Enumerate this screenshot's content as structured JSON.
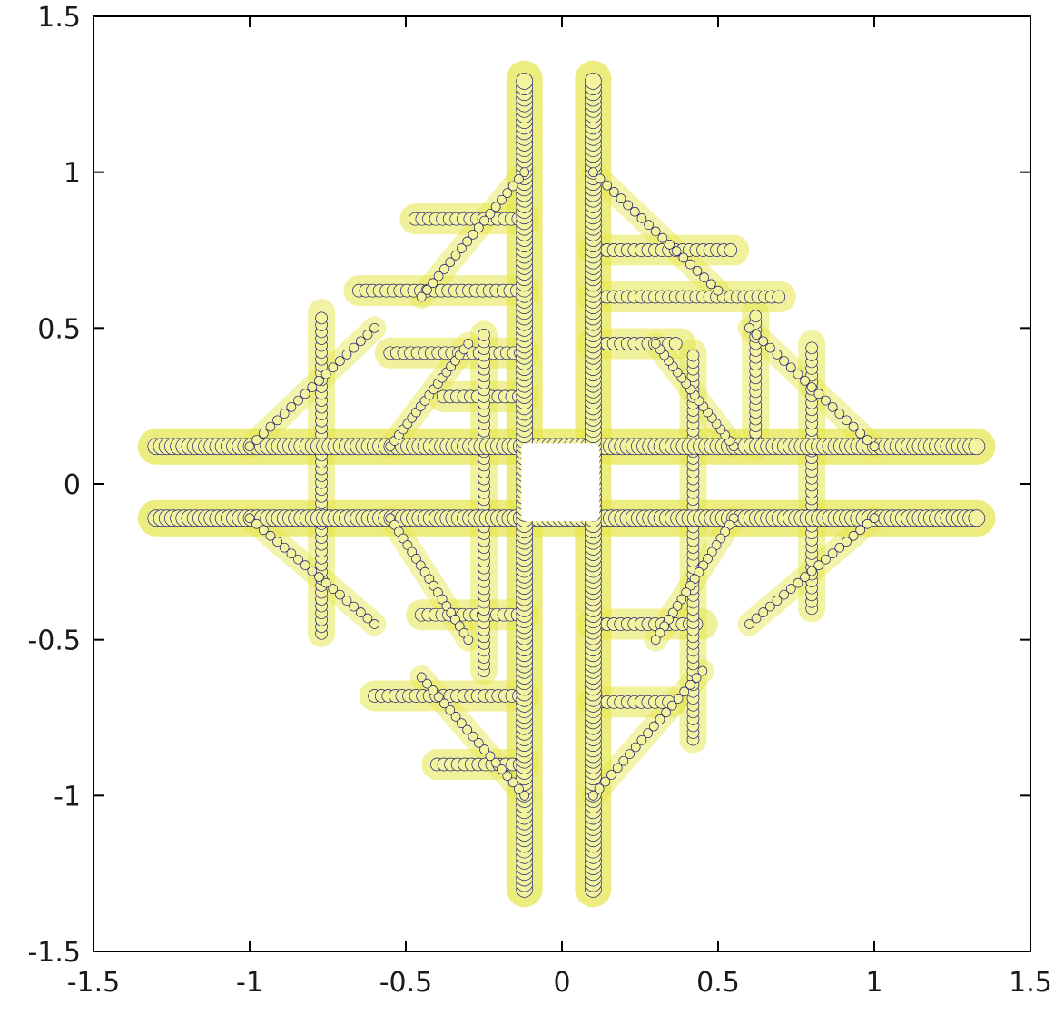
{
  "chart_data": {
    "type": "scatter",
    "title": "",
    "xlabel": "",
    "ylabel": "",
    "xlim": [
      -1.5,
      1.5
    ],
    "ylim": [
      -1.5,
      1.5
    ],
    "grid": false,
    "legend": "none",
    "x_ticks": [
      "-1.5",
      "-1",
      "-0.5",
      "0",
      "0.5",
      "1",
      "1.5"
    ],
    "y_ticks": [
      "1.5",
      "1",
      "0.5",
      "0",
      "-0.5",
      "-1",
      "-1.5"
    ],
    "colors": {
      "fill": "#e6e64a",
      "marker_edge": "#1c1c6e",
      "marker_face": "#f4f4a0",
      "frame": "#000000"
    },
    "structure": {
      "description_hidden": true,
      "vertical_bars": [
        {
          "x": -0.12,
          "y_range": [
            -1.3,
            1.3
          ]
        },
        {
          "x": 0.1,
          "y_range": [
            -1.3,
            1.3
          ]
        }
      ],
      "horizontal_bars": [
        {
          "y": 0.12,
          "x_range": [
            -1.3,
            1.33
          ]
        },
        {
          "y": -0.11,
          "x_range": [
            -1.3,
            1.33
          ]
        }
      ],
      "side_branches": [
        {
          "y": 0.85,
          "x_range": [
            -0.47,
            -0.12
          ]
        },
        {
          "y": 0.62,
          "x_range": [
            -0.65,
            -0.12
          ]
        },
        {
          "y": 0.42,
          "x_range": [
            -0.55,
            -0.12
          ]
        },
        {
          "y": 0.28,
          "x_range": [
            -0.38,
            -0.12
          ]
        },
        {
          "y": 0.75,
          "x_range": [
            0.1,
            0.55
          ]
        },
        {
          "y": 0.6,
          "x_range": [
            0.1,
            0.7
          ]
        },
        {
          "y": 0.45,
          "x_range": [
            0.1,
            0.38
          ]
        },
        {
          "y": -0.42,
          "x_range": [
            -0.45,
            -0.12
          ]
        },
        {
          "y": -0.68,
          "x_range": [
            -0.6,
            -0.12
          ]
        },
        {
          "y": -0.9,
          "x_range": [
            -0.4,
            -0.12
          ]
        },
        {
          "y": -0.45,
          "x_range": [
            0.1,
            0.45
          ]
        },
        {
          "y": -0.7,
          "x_range": [
            0.1,
            0.35
          ]
        }
      ],
      "vertical_branches": [
        {
          "x": -0.77,
          "y_range": [
            -0.48,
            0.55
          ]
        },
        {
          "x": -0.25,
          "y_range": [
            -0.6,
            0.48
          ]
        },
        {
          "x": 0.42,
          "y_range": [
            -0.82,
            0.42
          ]
        },
        {
          "x": 0.8,
          "y_range": [
            -0.4,
            0.45
          ]
        },
        {
          "x": 0.62,
          "y_range": [
            0.12,
            0.55
          ]
        }
      ],
      "central_hole": {
        "x_range": [
          -0.13,
          0.12
        ],
        "y_range": [
          -0.12,
          0.13
        ]
      }
    }
  }
}
